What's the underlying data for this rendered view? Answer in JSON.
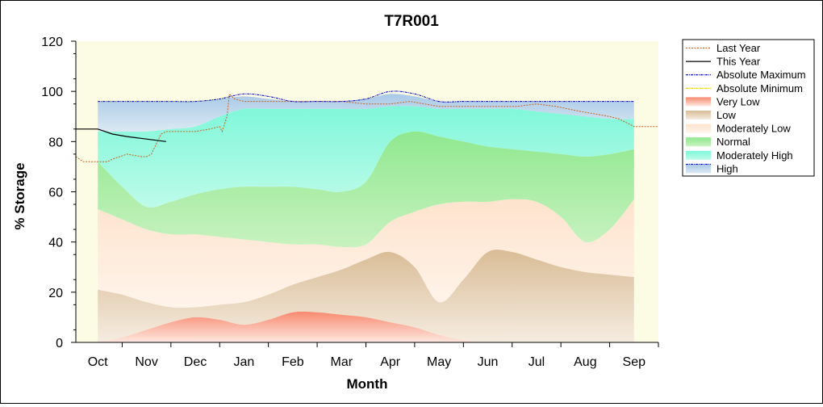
{
  "chart_data": {
    "type": "area",
    "title": "T7R001",
    "xlabel": "Month",
    "ylabel": "% Storage",
    "ylim": [
      0,
      120
    ],
    "yticks": [
      0,
      20,
      40,
      60,
      80,
      100,
      120
    ],
    "xlim": [
      -0.45,
      11.5
    ],
    "categories": [
      "Oct",
      "Nov",
      "Dec",
      "Jan",
      "Feb",
      "Mar",
      "Apr",
      "May",
      "Jun",
      "Jul",
      "Aug",
      "Sep"
    ],
    "legend_position": "right",
    "colors": {
      "plot_background": "#fcfce4",
      "last_year": "#c8641e",
      "this_year": "#000000",
      "abs_max": "#0000cc",
      "abs_min": "#e6d000",
      "very_low": "#f88a70",
      "low": "#d9bc96",
      "moderately_low": "#fde3cd",
      "normal": "#8fe88f",
      "moderately_high": "#7ff7d9",
      "high": "#a9c9e7"
    },
    "band_x": [
      0,
      0.5,
      1,
      1.5,
      2,
      2.5,
      3,
      3.5,
      4,
      4.5,
      5,
      5.5,
      6,
      6.5,
      7,
      7.5,
      8,
      8.5,
      9,
      9.5,
      10,
      10.5,
      11
    ],
    "bands": {
      "very_low": [
        0,
        2,
        5,
        8,
        10,
        9,
        7,
        9,
        12,
        12,
        11,
        10,
        8,
        6,
        3,
        1,
        0,
        0,
        0,
        0,
        0,
        0,
        0
      ],
      "low": [
        21,
        19,
        16,
        14,
        14,
        15,
        16,
        19,
        23,
        26,
        29,
        33,
        36,
        30,
        16,
        25,
        36,
        36,
        33,
        30,
        28,
        27,
        26
      ],
      "moderately_low": [
        53,
        49,
        45,
        43,
        43,
        42,
        41,
        40,
        39,
        39,
        38,
        39,
        48,
        52,
        55,
        56,
        56,
        57,
        56,
        50,
        40,
        45,
        57
      ],
      "normal": [
        72,
        62,
        54,
        56,
        59,
        61,
        62,
        62,
        62,
        61,
        60,
        64,
        80,
        84,
        82,
        80,
        78,
        77,
        76,
        75,
        74,
        75,
        77
      ],
      "moderately_high": [
        84,
        84,
        84,
        85,
        86,
        90,
        93,
        93,
        93,
        93,
        93,
        93,
        94,
        94,
        93,
        93,
        93,
        93,
        92,
        91,
        90,
        89,
        89
      ],
      "high": [
        96,
        96,
        96,
        96,
        96,
        97,
        98,
        97,
        96,
        96,
        96,
        97,
        99,
        98,
        96,
        96,
        96,
        96,
        96,
        96,
        96,
        96,
        96
      ]
    },
    "series": [
      {
        "name": "Last Year",
        "x": [
          -0.45,
          -0.3,
          -0.1,
          0.2,
          0.3,
          0.6,
          0.9,
          1.0,
          1.1,
          1.2,
          1.3,
          1.4,
          1.6,
          2.0,
          2.3,
          2.5,
          2.55,
          2.65,
          2.7,
          2.8,
          3.0,
          3.5,
          4.0,
          5.0,
          5.5,
          6.0,
          6.4,
          7.0,
          7.5,
          8.0,
          8.4,
          8.6,
          9.0,
          9.4,
          9.9,
          10.2,
          10.5,
          10.7,
          11.0,
          11.2,
          11.5
        ],
        "values": [
          74,
          72,
          72,
          72,
          73,
          75,
          74,
          74,
          75,
          79,
          83,
          84,
          84,
          84,
          85,
          86,
          84,
          90,
          99,
          97,
          96,
          96,
          96,
          96,
          95,
          95,
          96,
          94,
          94,
          94,
          94,
          94,
          95,
          94,
          92,
          91,
          90,
          89,
          86,
          86,
          86
        ]
      },
      {
        "name": "This Year",
        "x": [
          -0.45,
          0.0,
          0.3,
          0.6,
          1.0,
          1.4
        ],
        "values": [
          85,
          85,
          83,
          82,
          81,
          80
        ]
      },
      {
        "name": "Absolute Maximum",
        "x": [
          0,
          0.5,
          1,
          1.5,
          2,
          2.5,
          3,
          3.5,
          4,
          4.5,
          5,
          5.5,
          6,
          6.5,
          7,
          7.5,
          8,
          8.5,
          9,
          9.5,
          10,
          10.5,
          11
        ],
        "values": [
          96,
          96,
          96,
          96,
          96,
          97,
          99,
          98,
          96,
          96,
          96,
          97,
          100,
          99,
          96,
          96,
          96,
          96,
          96,
          96,
          96,
          96,
          96
        ]
      },
      {
        "name": "Absolute Minimum",
        "x": [
          0,
          11
        ],
        "values": [
          0,
          0
        ]
      }
    ],
    "legend": [
      "Last Year",
      "This Year",
      "Absolute Maximum",
      "Absolute Minimum",
      "Very Low",
      "Low",
      "Moderately Low",
      "Normal",
      "Moderately High",
      "High"
    ]
  }
}
